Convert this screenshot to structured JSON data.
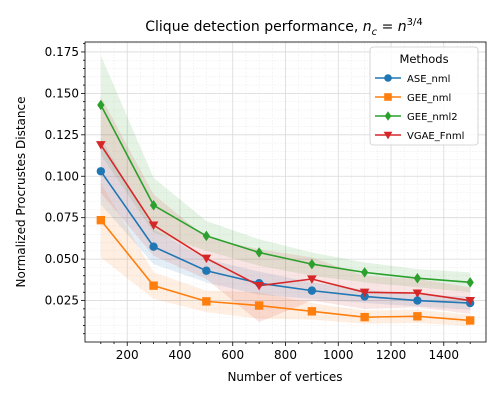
{
  "chart_data": {
    "type": "line",
    "title_main": "Clique detection performance, ",
    "title_math": "n",
    "title_sub": "c",
    "title_eq": " = ",
    "title_math2": "n",
    "title_sup": "3/4",
    "xlabel": "Number of vertices",
    "ylabel": "Normalized Procrustes Distance",
    "xlim": [
      40,
      1560
    ],
    "ylim": [
      0.0,
      0.181
    ],
    "xticks": [
      200,
      400,
      600,
      800,
      1000,
      1200,
      1400
    ],
    "xtick_labels": [
      "200",
      "400",
      "600",
      "800",
      "1000",
      "1200",
      "1400"
    ],
    "yticks": [
      0.025,
      0.05,
      0.075,
      0.1,
      0.125,
      0.15,
      0.175
    ],
    "ytick_labels": [
      "0.025",
      "0.050",
      "0.075",
      "0.100",
      "0.125",
      "0.150",
      "0.175"
    ],
    "grid": true,
    "legend_title": "Methods",
    "legend_position": "top-right",
    "x": [
      100,
      300,
      500,
      700,
      900,
      1100,
      1300,
      1500
    ],
    "series": [
      {
        "name": "ASE_nml",
        "color": "#1f77b4",
        "marker": "circle",
        "values": [
          0.103,
          0.0575,
          0.043,
          0.0355,
          0.031,
          0.0275,
          0.025,
          0.0235
        ],
        "lower": [
          0.083,
          0.047,
          0.036,
          0.0285,
          0.026,
          0.0235,
          0.0215,
          0.0195
        ],
        "upper": [
          0.123,
          0.068,
          0.05,
          0.0425,
          0.036,
          0.0315,
          0.0285,
          0.0275
        ]
      },
      {
        "name": "GEE_nml",
        "color": "#ff7f0e",
        "marker": "square",
        "values": [
          0.0735,
          0.034,
          0.0245,
          0.022,
          0.0185,
          0.015,
          0.0155,
          0.013
        ],
        "lower": [
          0.051,
          0.026,
          0.018,
          0.014,
          0.0135,
          0.011,
          0.0115,
          0.0095
        ],
        "upper": [
          0.096,
          0.042,
          0.031,
          0.03,
          0.0235,
          0.019,
          0.0195,
          0.0165
        ]
      },
      {
        "name": "GEE_nml2",
        "color": "#2ca02c",
        "marker": "diamond",
        "values": [
          0.143,
          0.0825,
          0.064,
          0.054,
          0.047,
          0.042,
          0.0385,
          0.036
        ],
        "lower": [
          0.113,
          0.066,
          0.055,
          0.046,
          0.04,
          0.036,
          0.033,
          0.03
        ],
        "upper": [
          0.173,
          0.099,
          0.073,
          0.062,
          0.054,
          0.048,
          0.044,
          0.042
        ]
      },
      {
        "name": "VGAE_Fnml",
        "color": "#d62728",
        "marker": "triangle-down",
        "values": [
          0.119,
          0.0705,
          0.0505,
          0.034,
          0.038,
          0.03,
          0.0295,
          0.025
        ],
        "lower": [
          0.09,
          0.052,
          0.038,
          0.012,
          0.025,
          0.02,
          0.021,
          0.017
        ],
        "upper": [
          0.148,
          0.089,
          0.063,
          0.056,
          0.051,
          0.04,
          0.038,
          0.033
        ]
      }
    ]
  }
}
